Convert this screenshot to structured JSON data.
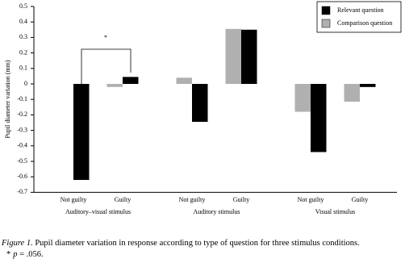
{
  "chart_data": {
    "type": "bar",
    "ylabel": "Pupil diameter variation (mm)",
    "categories": [
      "Not guilty",
      "Guilty",
      "Not guilty",
      "Guilty",
      "Not guilty",
      "Guilty"
    ],
    "groups": [
      "Auditory–visual stimulus",
      "Auditory stimulus",
      "Visual stimulus"
    ],
    "series": [
      {
        "name": "Relevant question",
        "color": "#000000",
        "values": [
          -0.62,
          0.045,
          -0.245,
          0.35,
          -0.44,
          -0.02
        ]
      },
      {
        "name": "Comparison question",
        "color": "#b0b0b0",
        "values": [
          0.0,
          -0.02,
          0.04,
          0.355,
          -0.18,
          -0.115
        ]
      }
    ],
    "ylim": [
      -0.7,
      0.5
    ],
    "yticks": [
      0.5,
      0.4,
      0.3,
      0.2,
      0.1,
      0,
      -0.1,
      -0.2,
      -0.3,
      -0.4,
      -0.5,
      -0.6,
      -0.7
    ],
    "annotations": [
      "*"
    ],
    "legend": "top-right"
  },
  "caption": {
    "label": "Figure 1.",
    "text": " Pupil diameter variation in response according to type of question for three stimulus conditions.",
    "note_mark": "*",
    "note_var": "p",
    "note_text": " = .056."
  }
}
